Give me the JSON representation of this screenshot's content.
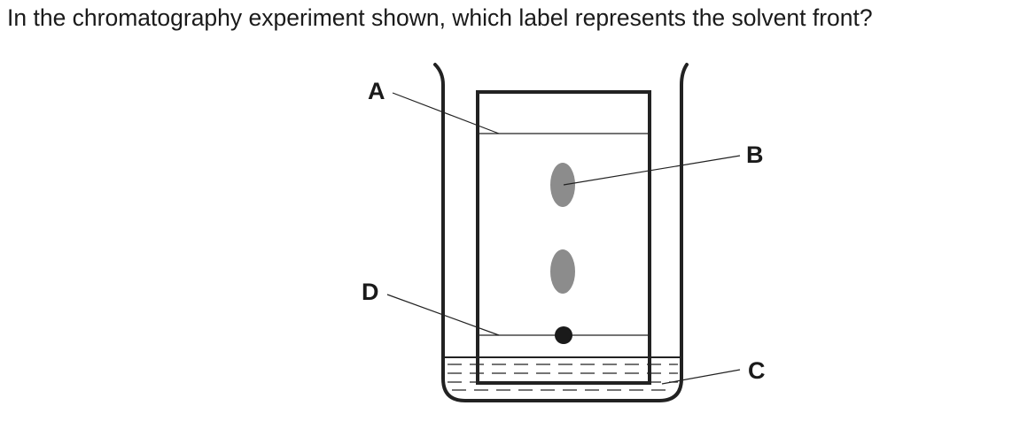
{
  "question": "In the chromatography experiment shown, which label represents the solvent front?",
  "diagram": {
    "labels": {
      "a": "A",
      "b": "B",
      "c": "C",
      "d": "D"
    },
    "colors": {
      "outline": "#222222",
      "spot": "#8c8c8c",
      "sample_dot": "#1a1a1a"
    }
  }
}
